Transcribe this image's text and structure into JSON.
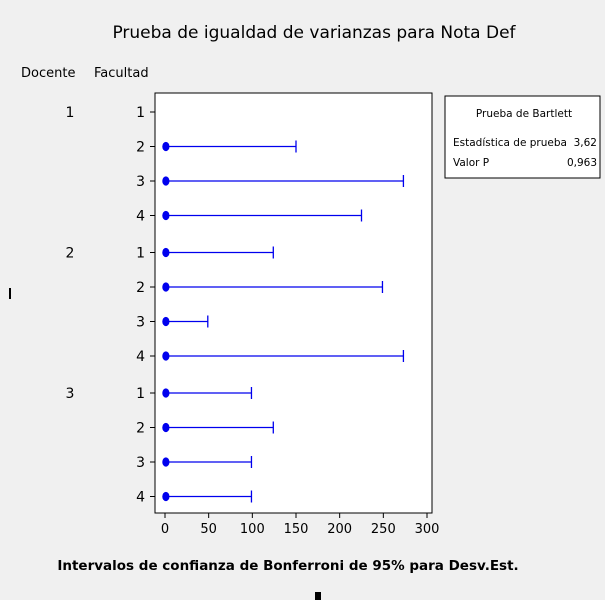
{
  "chart_data": {
    "type": "interval",
    "title": "Prueba de igualdad de varianzas para Nota Def",
    "xlabel": "Intervalos de confianza de Bonferroni de 95% para Desv.Est.",
    "group_headers": [
      "Docente",
      "Facultad"
    ],
    "xlim": [
      0,
      300
    ],
    "xticks": [
      0,
      50,
      100,
      150,
      200,
      250,
      300
    ],
    "grid": false,
    "legend_position": "top-right",
    "marker_color": "#0000ee",
    "groups": [
      {
        "label": "1",
        "rows": [
          {
            "label": "1",
            "point": null,
            "upper": null
          },
          {
            "label": "2",
            "point": 1,
            "upper": 150
          },
          {
            "label": "3",
            "point": 1,
            "upper": 273
          },
          {
            "label": "4",
            "point": 1,
            "upper": 225
          }
        ]
      },
      {
        "label": "2",
        "rows": [
          {
            "label": "1",
            "point": 1,
            "upper": 124
          },
          {
            "label": "2",
            "point": 1,
            "upper": 249
          },
          {
            "label": "3",
            "point": 1,
            "upper": 49
          },
          {
            "label": "4",
            "point": 1,
            "upper": 273
          }
        ]
      },
      {
        "label": "3",
        "rows": [
          {
            "label": "1",
            "point": 1,
            "upper": 99
          },
          {
            "label": "2",
            "point": 1,
            "upper": 124
          },
          {
            "label": "3",
            "point": 1,
            "upper": 99
          },
          {
            "label": "4",
            "point": 1,
            "upper": 99
          }
        ]
      }
    ]
  },
  "legend": {
    "title": "Prueba de Bartlett",
    "rows": [
      {
        "label": "Estadística de prueba",
        "value": "3,62"
      },
      {
        "label": "Valor P",
        "value": "0,963"
      }
    ]
  }
}
